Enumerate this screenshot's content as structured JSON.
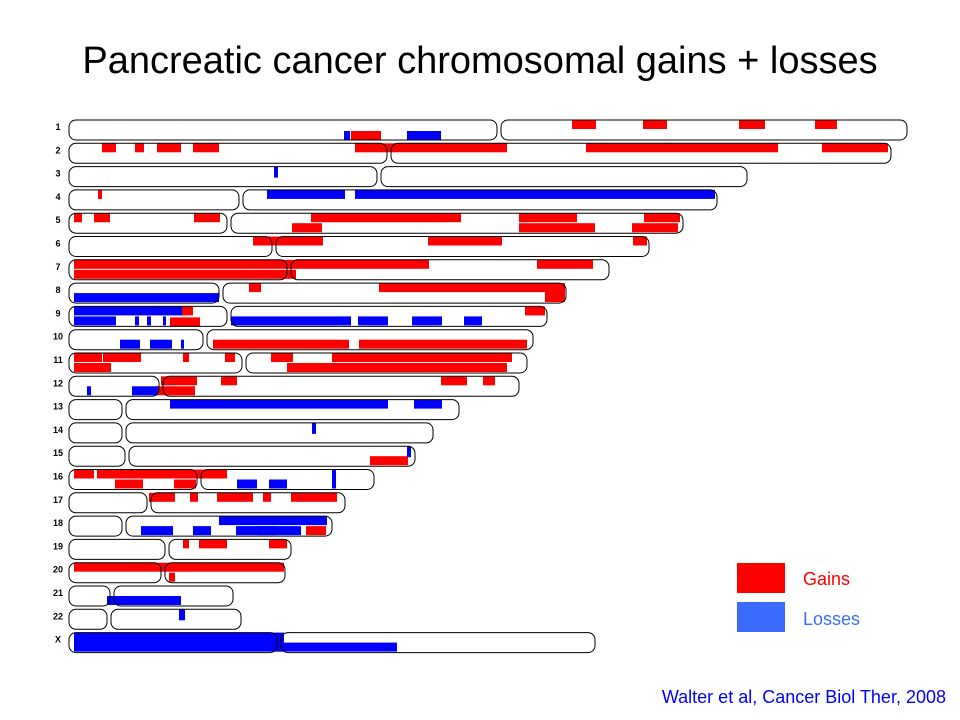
{
  "title": "Pancreatic cancer chromosomal gains + losses",
  "legend": {
    "gains_label": "Gains",
    "losses_label": "Losses",
    "gain_color": "#ff0000",
    "loss_color": "#3b6cff"
  },
  "citation": "Walter et al, Cancer Biol Ther, 2008",
  "colors": {
    "gain": "#ff0000",
    "loss": "#0000ff",
    "chromosome_outline": "#000000"
  },
  "chromosomes": [
    {
      "label": "1",
      "length": 838,
      "centromere": 430
    },
    {
      "label": "2",
      "length": 822,
      "centromere": 320
    },
    {
      "label": "3",
      "length": 678,
      "centromere": 310
    },
    {
      "label": "4",
      "length": 648,
      "centromere": 172
    },
    {
      "label": "5",
      "length": 614,
      "centromere": 160
    },
    {
      "label": "6",
      "length": 580,
      "centromere": 205
    },
    {
      "label": "7",
      "length": 540,
      "centromere": 220
    },
    {
      "label": "8",
      "length": 497,
      "centromere": 152
    },
    {
      "label": "9",
      "length": 478,
      "centromere": 160
    },
    {
      "label": "10",
      "length": 464,
      "centromere": 136
    },
    {
      "label": "11",
      "length": 458,
      "centromere": 175
    },
    {
      "label": "12",
      "length": 450,
      "centromere": 92
    },
    {
      "label": "13",
      "length": 390,
      "centromere": 55
    },
    {
      "label": "14",
      "length": 364,
      "centromere": 55
    },
    {
      "label": "15",
      "length": 346,
      "centromere": 58
    },
    {
      "label": "16",
      "length": 305,
      "centromere": 130
    },
    {
      "label": "17",
      "length": 276,
      "centromere": 80
    },
    {
      "label": "18",
      "length": 263,
      "centromere": 55
    },
    {
      "label": "19",
      "length": 222,
      "centromere": 98
    },
    {
      "label": "20",
      "length": 216,
      "centromere": 94
    },
    {
      "label": "21",
      "length": 164,
      "centromere": 43
    },
    {
      "label": "22",
      "length": 172,
      "centromere": 40
    },
    {
      "label": "X",
      "length": 526,
      "centromere": 210
    }
  ]
}
